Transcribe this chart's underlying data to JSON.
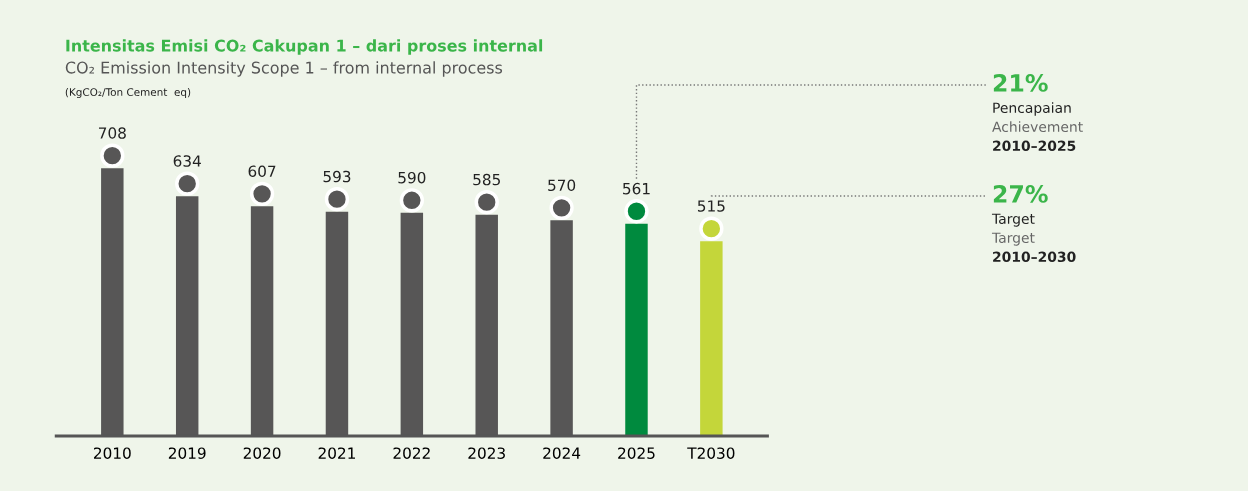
{
  "chart_data": {
    "type": "bar",
    "title": "Intensitas Emisi CO₂ Cakupan 1 – dari proses internal",
    "subtitle": "CO₂ Emission Intensity Scope 1 – from internal process",
    "categories": [
      "2010",
      "2019",
      "2020",
      "2021",
      "2022",
      "2023",
      "2024",
      "2025",
      "T2030"
    ],
    "values": [
      708,
      634,
      607,
      593,
      590,
      585,
      570,
      561,
      515
    ],
    "colors": [
      "#575656",
      "#575656",
      "#575656",
      "#575656",
      "#575656",
      "#575656",
      "#575656",
      "#008a3e",
      "#c4d63a"
    ],
    "data_labels": true,
    "marker": "circle",
    "grid": false,
    "annotations": [
      "(KgCO₂/Ton Cement  eq)",
      "21%",
      "Pencapaian",
      "Achievement",
      "2010–2025",
      "27%",
      "Target",
      "Target",
      "2010–2030"
    ]
  }
}
